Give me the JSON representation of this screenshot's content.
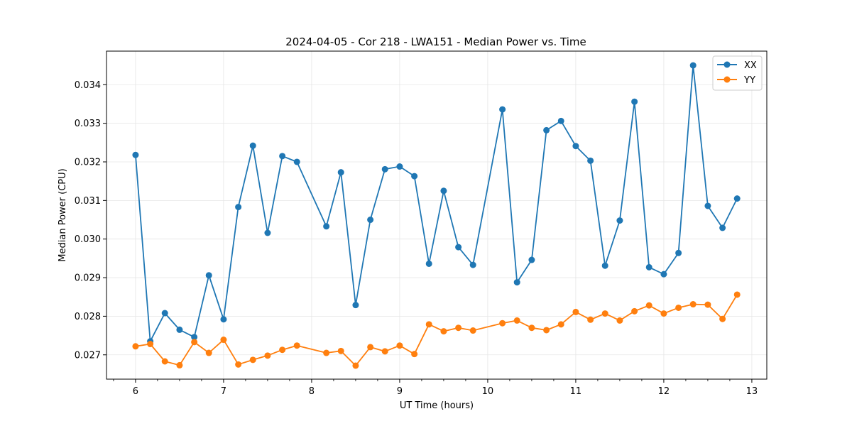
{
  "chart_data": {
    "type": "line",
    "title": "2024-04-05 - Cor 218 - LWA151 - Median Power vs. Time",
    "xlabel": "UT Time (hours)",
    "ylabel": "Median Power (CPU)",
    "xlim": [
      5.67,
      13.17
    ],
    "ylim": [
      0.02637,
      0.03487
    ],
    "xticks": [
      6,
      7,
      8,
      9,
      10,
      11,
      12,
      13
    ],
    "xtick_labels": [
      "6",
      "7",
      "8",
      "9",
      "10",
      "11",
      "12",
      "13"
    ],
    "yticks": [
      0.027,
      0.028,
      0.029,
      0.03,
      0.031,
      0.032,
      0.033,
      0.034
    ],
    "ytick_labels": [
      "0.027",
      "0.028",
      "0.029",
      "0.030",
      "0.031",
      "0.032",
      "0.033",
      "0.034"
    ],
    "grid": true,
    "legend_position": "top-right",
    "series": [
      {
        "name": "XX",
        "color": "#1f77b4",
        "x": [
          6.0,
          6.167,
          6.333,
          6.5,
          6.667,
          6.833,
          7.0,
          7.167,
          7.333,
          7.5,
          7.667,
          7.833,
          8.167,
          8.333,
          8.5,
          8.667,
          8.833,
          9.0,
          9.167,
          9.333,
          9.5,
          9.667,
          9.833,
          10.167,
          10.333,
          10.5,
          10.667,
          10.833,
          11.0,
          11.167,
          11.333,
          11.5,
          11.667,
          11.833,
          12.0,
          12.167,
          12.333,
          12.5,
          12.667,
          12.833
        ],
        "values": [
          0.03218,
          0.02735,
          0.02808,
          0.02765,
          0.02746,
          0.02906,
          0.02792,
          0.03083,
          0.03242,
          0.03016,
          0.03215,
          0.032,
          0.03033,
          0.03173,
          0.02829,
          0.0305,
          0.03181,
          0.03188,
          0.03163,
          0.02936,
          0.03125,
          0.02979,
          0.02933,
          0.03336,
          0.02888,
          0.02946,
          0.03282,
          0.03306,
          0.03241,
          0.03203,
          0.02931,
          0.03048,
          0.03356,
          0.02927,
          0.02909,
          0.02964,
          0.0345,
          0.03086,
          0.03029,
          0.03105
        ]
      },
      {
        "name": "YY",
        "color": "#ff7f0e",
        "x": [
          6.0,
          6.167,
          6.333,
          6.5,
          6.667,
          6.833,
          7.0,
          7.167,
          7.333,
          7.5,
          7.667,
          7.833,
          8.167,
          8.333,
          8.5,
          8.667,
          8.833,
          9.0,
          9.167,
          9.333,
          9.5,
          9.667,
          9.833,
          10.167,
          10.333,
          10.5,
          10.667,
          10.833,
          11.0,
          11.167,
          11.333,
          11.5,
          11.667,
          11.833,
          12.0,
          12.167,
          12.333,
          12.5,
          12.667,
          12.833
        ],
        "values": [
          0.02722,
          0.02728,
          0.02683,
          0.02673,
          0.02733,
          0.02705,
          0.02739,
          0.02675,
          0.02687,
          0.02698,
          0.02713,
          0.02724,
          0.02705,
          0.0271,
          0.02672,
          0.0272,
          0.02709,
          0.02724,
          0.02702,
          0.02779,
          0.02761,
          0.0277,
          0.02763,
          0.02782,
          0.02789,
          0.0277,
          0.02764,
          0.02779,
          0.02811,
          0.02791,
          0.02807,
          0.02789,
          0.02813,
          0.02828,
          0.02807,
          0.02822,
          0.02831,
          0.0283,
          0.02793,
          0.02856
        ]
      }
    ]
  }
}
